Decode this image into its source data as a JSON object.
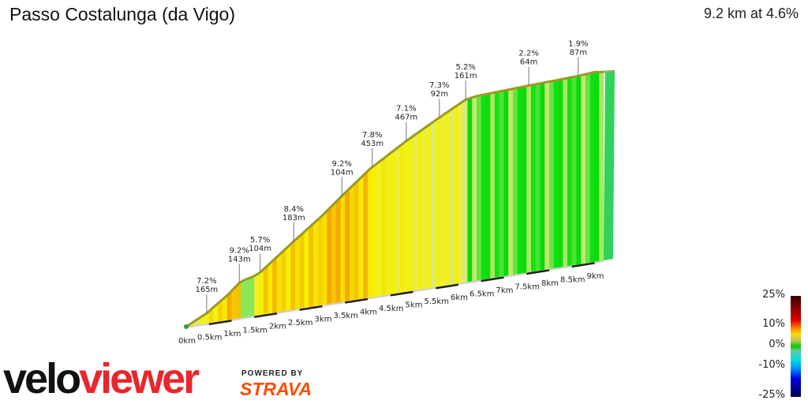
{
  "header": {
    "title": "Passo Costalunga (da Vigo)",
    "summary": "9.2 km at 4.6%"
  },
  "branding": {
    "logo_part1": "velo",
    "logo_part2": "viewer",
    "powered_by": "POWERED BY",
    "strava": "STRAVA"
  },
  "legend": {
    "labels": [
      "25%",
      "10%",
      "0%",
      "-10%",
      "-25%"
    ]
  },
  "chart_data": {
    "type": "area",
    "xlabel": "",
    "ylabel": "",
    "x_unit": "km",
    "xlim": [
      0,
      9.2
    ],
    "x_ticks": [
      "0km",
      "0.5km",
      "1km",
      "1.5km",
      "2km",
      "2.5km",
      "3km",
      "3.5km",
      "4km",
      "4.5km",
      "5km",
      "5.5km",
      "6km",
      "6.5km",
      "7km",
      "7.5km",
      "8km",
      "8.5km",
      "9km"
    ],
    "profile": [
      {
        "km": 0,
        "elev": 0
      },
      {
        "km": 0.45,
        "elev": 23
      },
      {
        "km": 0.93,
        "elev": 58
      },
      {
        "km": 1.17,
        "elev": 80
      },
      {
        "km": 1.3,
        "elev": 85
      },
      {
        "km": 1.48,
        "elev": 89
      },
      {
        "km": 1.63,
        "elev": 96
      },
      {
        "km": 2.37,
        "elev": 154
      },
      {
        "km": 3.0,
        "elev": 202
      },
      {
        "km": 3.43,
        "elev": 239
      },
      {
        "km": 4.05,
        "elev": 290
      },
      {
        "km": 4.85,
        "elev": 340
      },
      {
        "km": 5.58,
        "elev": 381
      },
      {
        "km": 6.16,
        "elev": 412
      },
      {
        "km": 6.4,
        "elev": 416
      },
      {
        "km": 7.55,
        "elev": 421
      },
      {
        "km": 8.64,
        "elev": 425
      },
      {
        "km": 9.0,
        "elev": 428
      },
      {
        "km": 9.2,
        "elev": 425
      }
    ],
    "annotations": [
      {
        "km": 0.45,
        "grade": "7.2%",
        "length": "165m"
      },
      {
        "km": 1.17,
        "grade": "9.2%",
        "length": "143m"
      },
      {
        "km": 1.63,
        "grade": "5.7%",
        "length": "104m"
      },
      {
        "km": 2.37,
        "grade": "8.4%",
        "length": "183m"
      },
      {
        "km": 3.43,
        "grade": "9.2%",
        "length": "104m"
      },
      {
        "km": 4.1,
        "grade": "7.8%",
        "length": "453m"
      },
      {
        "km": 4.85,
        "grade": "7.1%",
        "length": "467m"
      },
      {
        "km": 5.58,
        "grade": "7.3%",
        "length": "92m"
      },
      {
        "km": 6.16,
        "grade": "5.2%",
        "length": "161m"
      },
      {
        "km": 7.55,
        "grade": "2.2%",
        "length": "64m"
      },
      {
        "km": 8.64,
        "grade": "1.9%",
        "length": "87m"
      }
    ],
    "color_scale": {
      "min": -25,
      "max": 25
    }
  }
}
